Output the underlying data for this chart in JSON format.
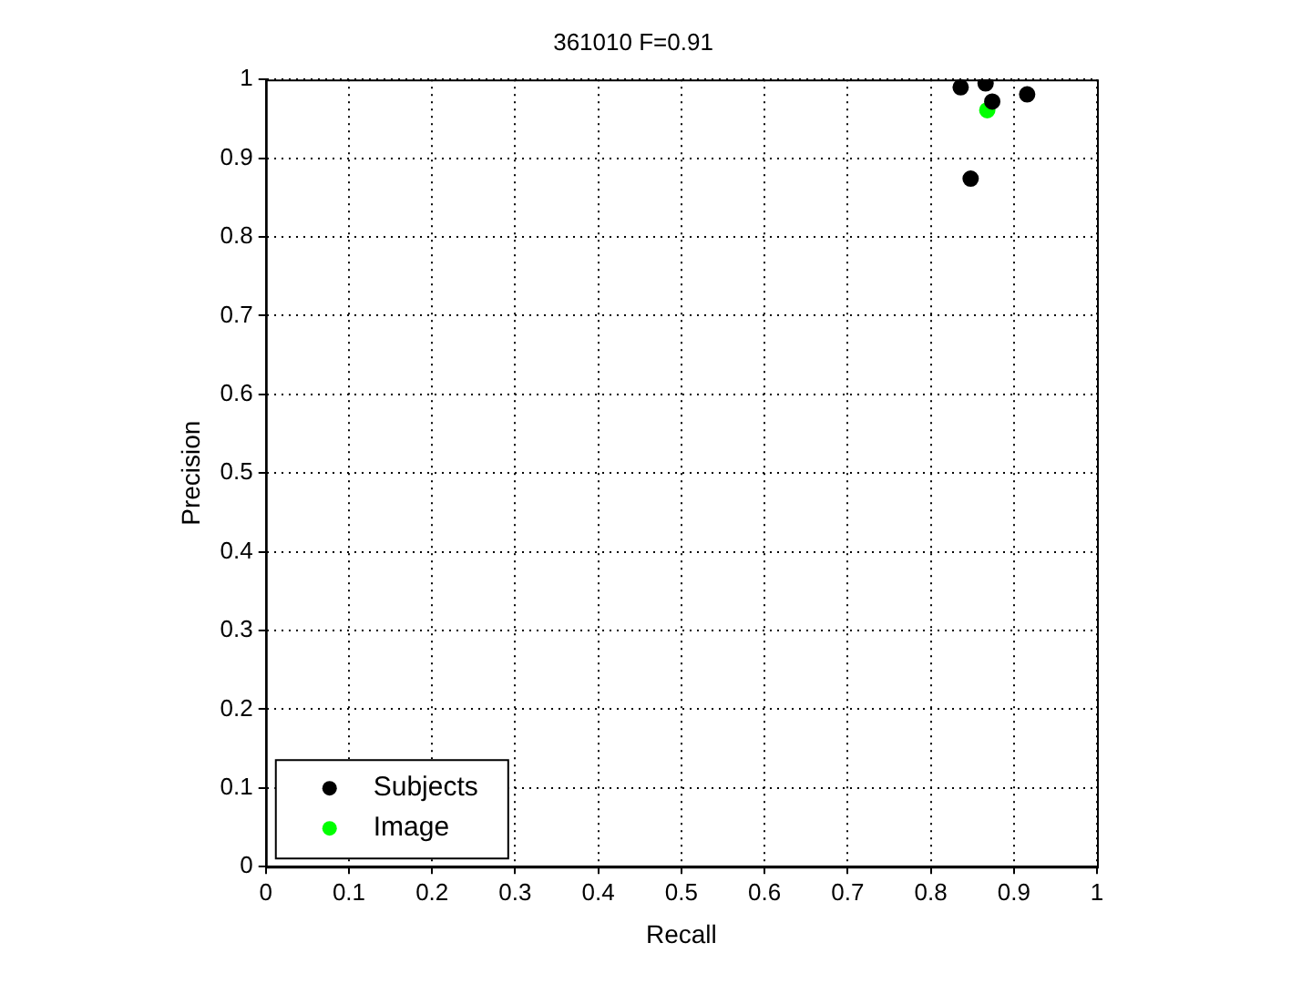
{
  "chart_data": {
    "type": "scatter",
    "title": "361010 F=0.91",
    "xlabel": "Recall",
    "ylabel": "Precision",
    "xlim": [
      0,
      1
    ],
    "ylim": [
      0,
      1
    ],
    "xticks": [
      0,
      0.1,
      0.2,
      0.3,
      0.4,
      0.5,
      0.6,
      0.7,
      0.8,
      0.9,
      1
    ],
    "yticks": [
      0,
      0.1,
      0.2,
      0.3,
      0.4,
      0.5,
      0.6,
      0.7,
      0.8,
      0.9,
      1
    ],
    "grid": true,
    "legend": "bottom left",
    "marker": "circle",
    "series": [
      {
        "name": "Subjects",
        "color": "#000000",
        "x": [
          0.836,
          0.866,
          0.874,
          0.916,
          0.848
        ],
        "values": [
          0.99,
          0.995,
          0.972,
          0.981,
          0.874
        ]
      },
      {
        "name": "Image",
        "color": "#00ff00",
        "x": [
          0.868
        ],
        "values": [
          0.961
        ]
      }
    ]
  }
}
